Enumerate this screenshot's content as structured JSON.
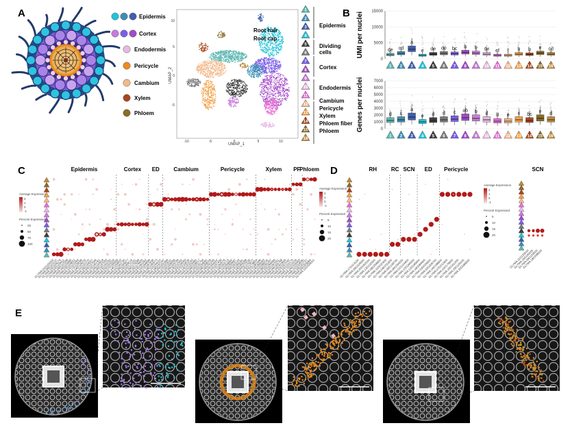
{
  "panels": {
    "a": "A",
    "b": "B",
    "c": "C",
    "d": "D",
    "e": "E"
  },
  "colors": {
    "c1": "#5fb7b2",
    "c2": "#3d8fb6",
    "c3": "#3f5fb0",
    "c4": "#22c4d8",
    "c5": "#3e3e3e",
    "c6": "#7a7a7a",
    "c7": "#7b5ee6",
    "c8": "#a44bc7",
    "c9": "#c77cd8",
    "c10": "#e8b9e3",
    "c11": "#e86fd4",
    "c12": "#f3b98b",
    "c13": "#f2a045",
    "c14": "#a9461d",
    "c15": "#8c6b24",
    "c16": "#bf8a3d",
    "dot": "#b11a1a",
    "dotLight": "#f1c9c3"
  },
  "panelA": {
    "legend": [
      {
        "label": "Epidermis"
      },
      {
        "label": "Cortex"
      },
      {
        "label": "Endodermis"
      },
      {
        "label": "Pericycle"
      },
      {
        "label": "Cambium"
      },
      {
        "label": "Xylem"
      },
      {
        "label": "Phloem"
      }
    ],
    "umap": {
      "xlabel": "UMAP_1",
      "ylabel": "UMAP_2",
      "xticks": [
        "-10",
        "-5",
        "0",
        "5",
        "10"
      ],
      "yticks": [
        "10",
        "5",
        "0",
        "-5"
      ]
    },
    "annotations": [
      "Root hair",
      "Root cap"
    ],
    "clusters": [
      "1",
      "2",
      "3",
      "4",
      "5",
      "6",
      "7",
      "8",
      "9",
      "10",
      "11",
      "12",
      "13",
      "14",
      "15",
      "16"
    ],
    "cluster_groups": [
      "Epidermis",
      "Dividing cells",
      "Cortex",
      "Endodermis",
      "Cambium",
      "Pericycle",
      "Xylem",
      "Phloem fiber",
      "Phloem"
    ]
  },
  "chart_data": [
    {
      "type": "box",
      "title": "UMI per nuclei",
      "ylabel": "UMI per nuclei",
      "ylim": [
        0,
        15000
      ],
      "yticks": [
        "0",
        "5000",
        "10000",
        "15000"
      ],
      "categories": [
        "1",
        "2",
        "3",
        "4",
        "5",
        "6",
        "7",
        "8",
        "9",
        "10",
        "11",
        "12",
        "13",
        "14",
        "15",
        "16"
      ],
      "medians": [
        1300,
        1700,
        3000,
        1100,
        1500,
        1700,
        1600,
        2000,
        1800,
        1500,
        1100,
        1100,
        1500,
        1400,
        1800,
        1500
      ],
      "letters": [
        "de",
        "cd",
        "a",
        "e",
        "de",
        "de",
        "bc",
        "b",
        "b",
        "de",
        "ef",
        "f",
        "b",
        "b",
        "e",
        "cd"
      ]
    },
    {
      "type": "box",
      "title": "Genes per nuclei",
      "ylabel": "Genes per nuclei",
      "ylim": [
        0,
        7000
      ],
      "yticks": [
        "0",
        "1000",
        "2000",
        "3000",
        "4000",
        "5000",
        "6000",
        "7000"
      ],
      "categories": [
        "1",
        "2",
        "3",
        "4",
        "5",
        "6",
        "7",
        "8",
        "9",
        "10",
        "11",
        "12",
        "13",
        "14",
        "15",
        "16"
      ],
      "medians": [
        1200,
        1300,
        1700,
        1000,
        1200,
        1300,
        1400,
        1600,
        1500,
        1300,
        1100,
        1100,
        1300,
        1200,
        1500,
        1300
      ],
      "letters": [
        "d",
        "c",
        "a",
        "e",
        "d",
        "d",
        "c",
        "ab",
        "b",
        "d",
        "d",
        "e",
        "c",
        "bc",
        "e",
        "d"
      ]
    }
  ],
  "panelC": {
    "headers": [
      "Epidermis",
      "Cortex",
      "ED",
      "Cambium",
      "Pericycle",
      "Xylem",
      "PF",
      "Phloem"
    ],
    "legend": {
      "avg": "Average Expression",
      "pct": "Percent Expressed",
      "avg_ticks": [
        "2",
        "1",
        "0",
        "-1"
      ],
      "pct_ticks": [
        "25",
        "50",
        "75",
        "100"
      ]
    },
    "gene_count": 74
  },
  "panelD": {
    "headers": [
      "RH",
      "RC",
      "SCN",
      "ED",
      "Pericycle"
    ],
    "legend": {
      "avg": "Average Expression",
      "pct": "Percent Expressed",
      "avg_ticks": [
        "2",
        "1",
        "0",
        "-1"
      ],
      "pct_ticks": [
        "5",
        "10",
        "15",
        "20"
      ]
    },
    "genes": [
      "GLYMA.17G113100",
      "GLYMA.09G104500",
      "GLYMA.20G052000",
      "GLYMA.13G132500",
      "GLYMA.08G258800",
      "GLYMA.11G022400",
      "GLYMA.04G231800",
      "GLYMA.05G148700",
      "GLYMA.06G264200",
      "GLYMA.01G114400",
      "GLYMA.13G244300",
      "GLYMA.12G045900",
      "GLYMA.19G089400",
      "GLYMA.03G026500",
      "GLYMA.02G208700",
      "GLYMA.14G198800",
      "GLYMA.07G212400",
      "GLYMA.10G178600",
      "GLYMA.16G151300",
      "GLYMA.15G129100",
      "GLYMA.20G086500"
    ]
  },
  "panelSCN": {
    "title": "SCN",
    "legend": {
      "avg": "Average Expression",
      "pct": "Percent Expressed",
      "avg_ticks": [
        "2",
        "1",
        "0",
        "-1"
      ],
      "pct_ticks": [
        "5",
        "10",
        "15",
        "20"
      ]
    },
    "genes": [
      "GLYMA.11G133000",
      "GLYMA.19G140000",
      "GLYMA.09G129500",
      "GLYMA.18G248000"
    ]
  }
}
